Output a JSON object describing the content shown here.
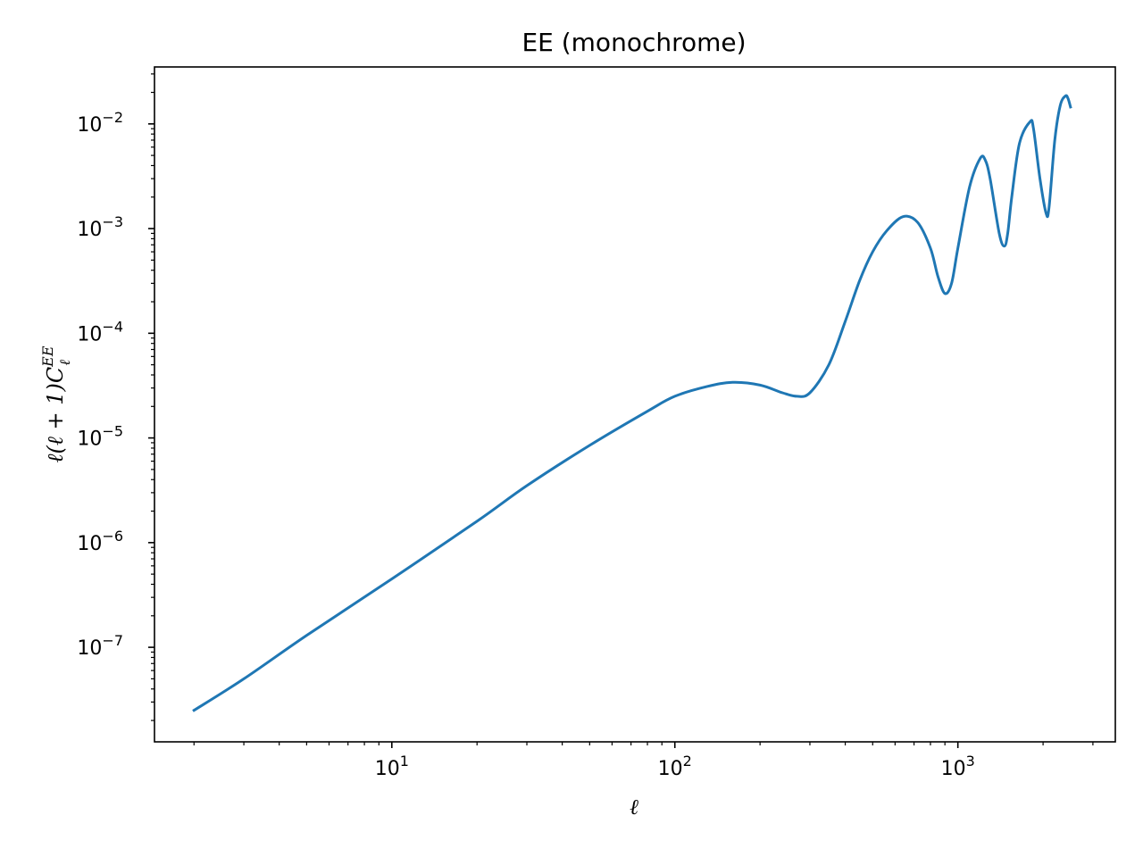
{
  "chart_data": {
    "type": "line",
    "title": "EE (monochrome)",
    "xlabel": "ℓ",
    "ylabel": "ℓ(ℓ + 1)C",
    "ylabel_sup": "EE",
    "ylabel_sub": "ℓ",
    "x_scale": "log",
    "y_scale": "log",
    "xlim": [
      1.45,
      3600
    ],
    "ylim": [
      1.25e-08,
      0.035
    ],
    "x_ticks": [
      {
        "value": 10,
        "base": "10",
        "exp": "1"
      },
      {
        "value": 100,
        "base": "10",
        "exp": "2"
      },
      {
        "value": 1000,
        "base": "10",
        "exp": "3"
      }
    ],
    "y_ticks": [
      {
        "value": 1e-07,
        "base": "10",
        "exp": "−7"
      },
      {
        "value": 1e-06,
        "base": "10",
        "exp": "−6"
      },
      {
        "value": 1e-05,
        "base": "10",
        "exp": "−5"
      },
      {
        "value": 0.0001,
        "base": "10",
        "exp": "−4"
      },
      {
        "value": 0.001,
        "base": "10",
        "exp": "−3"
      },
      {
        "value": 0.01,
        "base": "10",
        "exp": "−2"
      }
    ],
    "grid": false,
    "legend": "none",
    "line_color": "#1f77b4",
    "series": [
      {
        "x": [
          2,
          3,
          5,
          10,
          20,
          30,
          50,
          80,
          100,
          130,
          160,
          200,
          240,
          270,
          300,
          350,
          400,
          450,
          500,
          560,
          640,
          720,
          800,
          850,
          900,
          950,
          1000,
          1100,
          1200,
          1250,
          1300,
          1400,
          1460,
          1500,
          1550,
          1650,
          1800,
          1850,
          1950,
          2050,
          2100,
          2200,
          2300,
          2400,
          2450,
          2500
        ],
        "y": [
          2.5e-08,
          5e-08,
          1.3e-07,
          4.5e-07,
          1.6e-06,
          3.5e-06,
          8.5e-06,
          1.8e-05,
          2.5e-05,
          3.1e-05,
          3.4e-05,
          3.2e-05,
          2.7e-05,
          2.5e-05,
          2.7e-05,
          5e-05,
          0.00013,
          0.00032,
          0.0006,
          0.00095,
          0.0013,
          0.00115,
          0.00065,
          0.00035,
          0.00024,
          0.0003,
          0.00065,
          0.0025,
          0.0047,
          0.0045,
          0.003,
          0.0009,
          0.00068,
          0.0009,
          0.002,
          0.0065,
          0.0105,
          0.009,
          0.003,
          0.0014,
          0.0016,
          0.007,
          0.015,
          0.0185,
          0.0175,
          0.0145
        ]
      }
    ]
  }
}
